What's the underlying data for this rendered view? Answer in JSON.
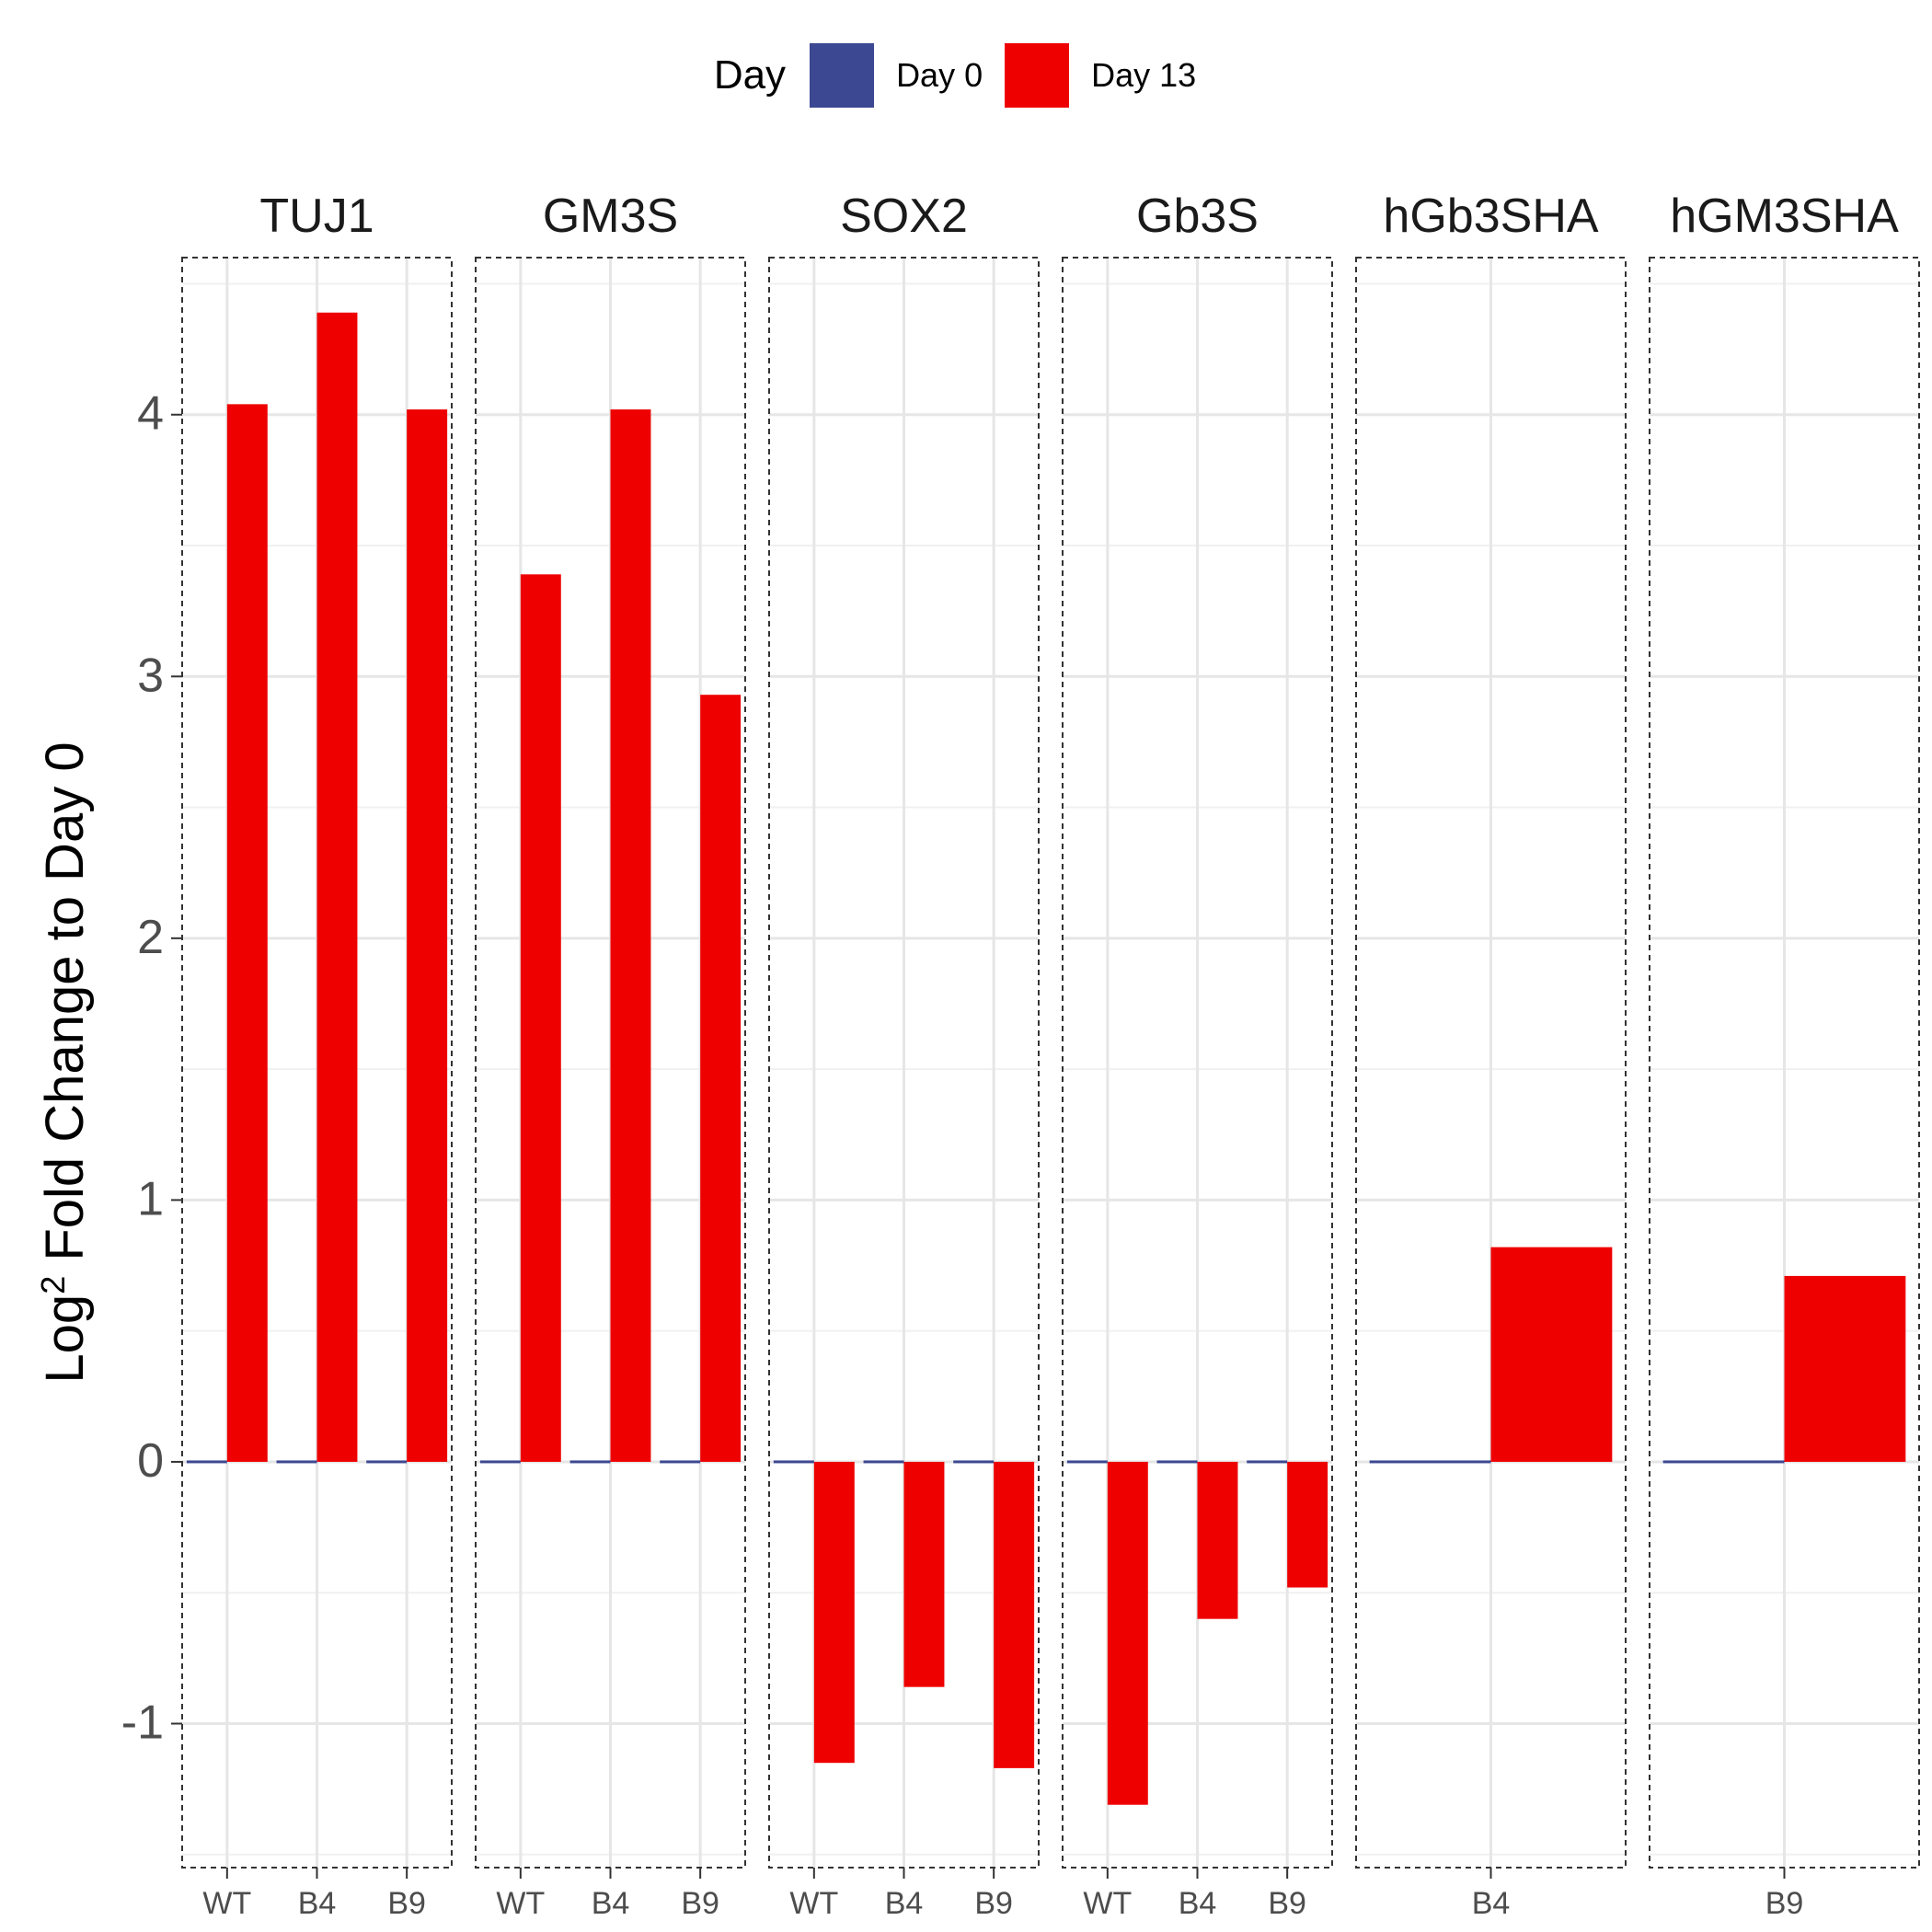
{
  "chart_data": {
    "type": "bar",
    "ylabel": "Log2 Fold Change to Day 0",
    "ylim": [
      -1.55,
      4.6
    ],
    "yticks": [
      -1,
      0,
      1,
      2,
      3,
      4
    ],
    "grid": true,
    "legend": {
      "title": "Day",
      "position": "top",
      "entries": [
        {
          "name": "Day 0",
          "color": "#3C4891"
        },
        {
          "name": "Day 13",
          "color": "#EE0000"
        }
      ]
    },
    "panels": [
      {
        "title": "TUJ1",
        "categories": [
          "WT",
          "B4",
          "B9"
        ],
        "series": [
          {
            "name": "Day 0",
            "values": [
              0,
              0,
              0
            ]
          },
          {
            "name": "Day 13",
            "values": [
              4.04,
              4.39,
              4.02
            ]
          }
        ]
      },
      {
        "title": "GM3S",
        "categories": [
          "WT",
          "B4",
          "B9"
        ],
        "series": [
          {
            "name": "Day 0",
            "values": [
              0,
              0,
              0
            ]
          },
          {
            "name": "Day 13",
            "values": [
              3.39,
              4.02,
              2.93
            ]
          }
        ]
      },
      {
        "title": "SOX2",
        "categories": [
          "WT",
          "B4",
          "B9"
        ],
        "series": [
          {
            "name": "Day 0",
            "values": [
              0,
              0,
              0
            ]
          },
          {
            "name": "Day 13",
            "values": [
              -1.15,
              -0.86,
              -1.17
            ]
          }
        ]
      },
      {
        "title": "Gb3S",
        "categories": [
          "WT",
          "B4",
          "B9"
        ],
        "series": [
          {
            "name": "Day 0",
            "values": [
              0,
              0,
              0
            ]
          },
          {
            "name": "Day 13",
            "values": [
              -1.31,
              -0.6,
              -0.48
            ]
          }
        ]
      },
      {
        "title": "hGb3SHA",
        "categories": [
          "B4"
        ],
        "series": [
          {
            "name": "Day 0",
            "values": [
              0
            ]
          },
          {
            "name": "Day 13",
            "values": [
              0.82
            ]
          }
        ]
      },
      {
        "title": "hGM3SHA",
        "categories": [
          "B9"
        ],
        "series": [
          {
            "name": "Day 0",
            "values": [
              0
            ]
          },
          {
            "name": "Day 13",
            "values": [
              0.71
            ]
          }
        ]
      }
    ]
  }
}
